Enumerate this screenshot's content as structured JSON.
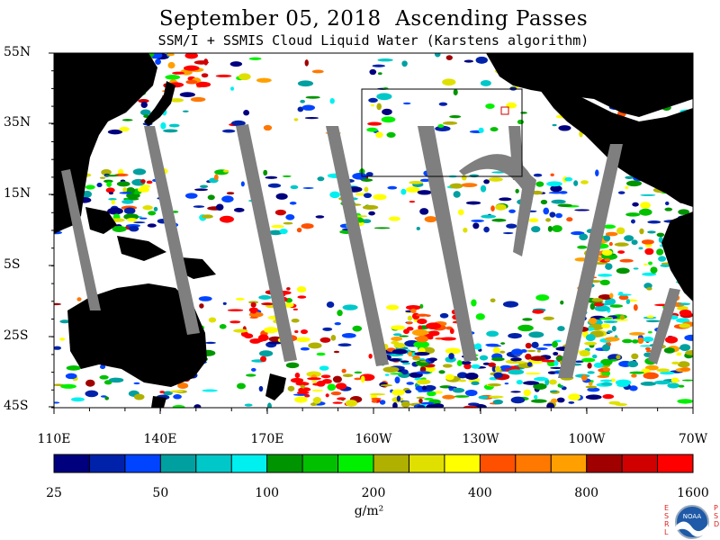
{
  "title": "September 05, 2018  Ascending Passes",
  "subtitle": "SSM/I + SSMIS Cloud Liquid Water (Karstens algorithm)",
  "lat_labels": [
    "55N",
    "35N",
    "15N",
    "5S",
    "25S",
    "45S"
  ],
  "lon_labels": [
    "110E",
    "140E",
    "170E",
    "160W",
    "130W",
    "100W",
    "70W"
  ],
  "colorbar": {
    "colors": [
      "#00007f",
      "#0022aa",
      "#0044ff",
      "#00a0a0",
      "#00c8c8",
      "#00f0f0",
      "#009400",
      "#00c000",
      "#00f000",
      "#b0b000",
      "#e0e000",
      "#ffff00",
      "#ff5000",
      "#ff7800",
      "#ffa000",
      "#a00000",
      "#d00000",
      "#ff0000"
    ],
    "labels": [
      "25",
      "50",
      "100",
      "200",
      "400",
      "800",
      "1600"
    ]
  },
  "units": "g/m²",
  "logo": {
    "left_letters": [
      "E",
      "S",
      "R",
      "L"
    ],
    "right_letters": [
      "P",
      "S",
      "D"
    ],
    "center_text": "NOAA"
  },
  "map_legend_colors": {
    "land": "#000000",
    "no_data": "#7f7f7f",
    "clear": "#ffffff"
  }
}
